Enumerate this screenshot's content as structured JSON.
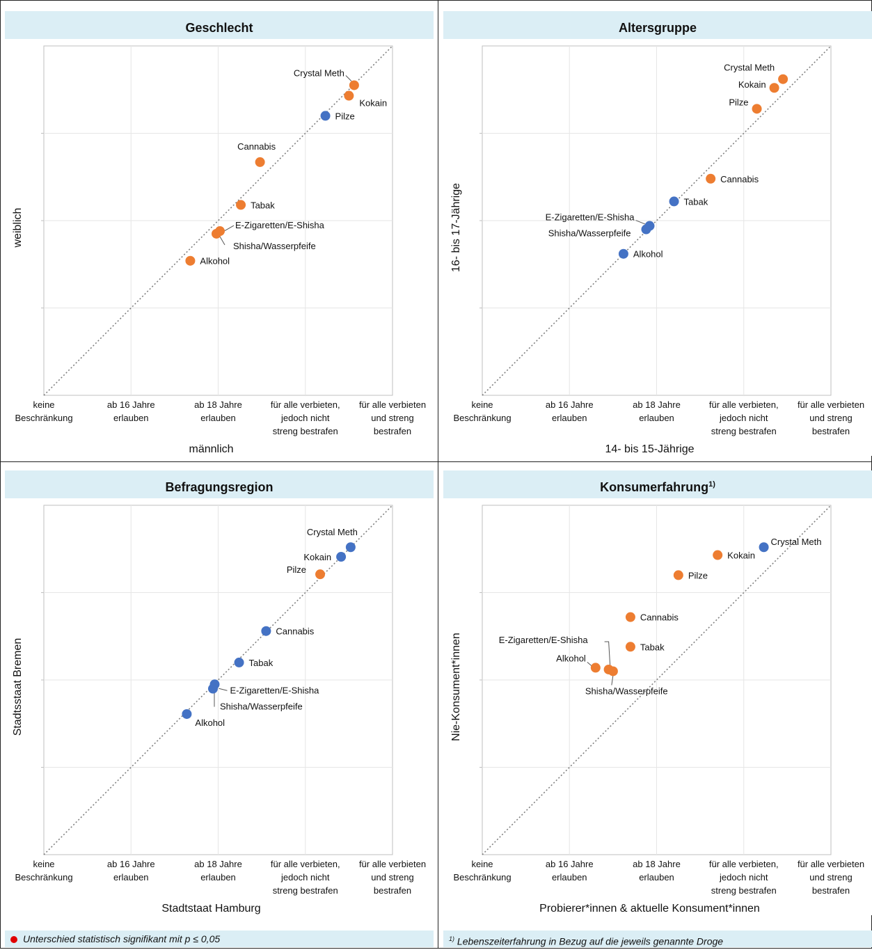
{
  "footers": {
    "left": "Unterschied statistisch signifikant mit p ≤ 0,05",
    "right_note_mark": "1)",
    "right": "Lebenszeiterfahrung in Bezug auf die jeweils genannte Droge"
  },
  "colors": {
    "significant": "#ed7d31",
    "not_significant": "#4472c4",
    "legend_dot": "#e00000"
  },
  "chart_data": [
    {
      "type": "scatter",
      "title": "Geschlecht",
      "title_sup": "",
      "xlabel": "männlich",
      "ylabel": "weiblich",
      "categories": [
        "keine Beschränkung",
        "ab 16 Jahre erlauben",
        "ab 18 Jahre erlauben",
        "für alle verbieten, jedoch nicht streng bestrafen",
        "für alle verbieten und streng bestrafen"
      ],
      "xlim": [
        1,
        5
      ],
      "ylim": [
        1,
        5
      ],
      "points": [
        {
          "name": "Crystal Meth",
          "x": 4.56,
          "y": 4.55,
          "significant": true
        },
        {
          "name": "Kokain",
          "x": 4.5,
          "y": 4.43,
          "significant": true
        },
        {
          "name": "Pilze",
          "x": 4.23,
          "y": 4.2,
          "significant": false
        },
        {
          "name": "Cannabis",
          "x": 3.48,
          "y": 3.67,
          "significant": true
        },
        {
          "name": "Tabak",
          "x": 3.26,
          "y": 3.18,
          "significant": true
        },
        {
          "name": "E-Zigaretten/E-Shisha",
          "x": 3.02,
          "y": 2.88,
          "significant": true
        },
        {
          "name": "Shisha/Wasserpfeife",
          "x": 2.98,
          "y": 2.85,
          "significant": true
        },
        {
          "name": "Alkohol",
          "x": 2.68,
          "y": 2.54,
          "significant": true
        }
      ]
    },
    {
      "type": "scatter",
      "title": "Altersgruppe",
      "title_sup": "",
      "xlabel": "14- bis 15-Jährige",
      "ylabel": "16- bis 17-Jährige",
      "categories": [
        "keine Beschränkung",
        "ab 16 Jahre erlauben",
        "ab 18 Jahre erlauben",
        "für alle verbieten, jedoch nicht streng bestrafen",
        "für alle verbieten und streng bestrafen"
      ],
      "xlim": [
        1,
        5
      ],
      "ylim": [
        1,
        5
      ],
      "points": [
        {
          "name": "Crystal Meth",
          "x": 4.45,
          "y": 4.62,
          "significant": true
        },
        {
          "name": "Kokain",
          "x": 4.35,
          "y": 4.52,
          "significant": true
        },
        {
          "name": "Pilze",
          "x": 4.15,
          "y": 4.28,
          "significant": true
        },
        {
          "name": "Cannabis",
          "x": 3.62,
          "y": 3.48,
          "significant": true
        },
        {
          "name": "Tabak",
          "x": 3.2,
          "y": 3.22,
          "significant": false
        },
        {
          "name": "E-Zigaretten/E-Shisha",
          "x": 2.92,
          "y": 2.94,
          "significant": false
        },
        {
          "name": "Shisha/Wasserpfeife",
          "x": 2.88,
          "y": 2.9,
          "significant": false
        },
        {
          "name": "Alkohol",
          "x": 2.62,
          "y": 2.62,
          "significant": false
        }
      ]
    },
    {
      "type": "scatter",
      "title": "Befragungsregion",
      "title_sup": "",
      "xlabel": "Stadtstaat Hamburg",
      "ylabel": "Stadtsstaat Bremen",
      "categories": [
        "keine Beschränkung",
        "ab 16 Jahre erlauben",
        "ab 18 Jahre erlauben",
        "für alle verbieten, jedoch nicht streng bestrafen",
        "für alle verbieten und streng bestrafen"
      ],
      "xlim": [
        1,
        5
      ],
      "ylim": [
        1,
        5
      ],
      "points": [
        {
          "name": "Crystal Meth",
          "x": 4.52,
          "y": 4.52,
          "significant": false
        },
        {
          "name": "Kokain",
          "x": 4.41,
          "y": 4.41,
          "significant": false
        },
        {
          "name": "Pilze",
          "x": 4.17,
          "y": 4.21,
          "significant": true
        },
        {
          "name": "Cannabis",
          "x": 3.55,
          "y": 3.56,
          "significant": false
        },
        {
          "name": "Tabak",
          "x": 3.24,
          "y": 3.2,
          "significant": false
        },
        {
          "name": "E-Zigaretten/E-Shisha",
          "x": 2.96,
          "y": 2.95,
          "significant": false
        },
        {
          "name": "Shisha/Wasserpfeife",
          "x": 2.94,
          "y": 2.9,
          "significant": false
        },
        {
          "name": "Alkohol",
          "x": 2.64,
          "y": 2.61,
          "significant": false
        }
      ]
    },
    {
      "type": "scatter",
      "title": "Konsumerfahrung",
      "title_sup": "1)",
      "xlabel": "Probierer*innen & aktuelle Konsument*innen",
      "ylabel": "Nie-Konsument*innen",
      "categories": [
        "keine Beschränkung",
        "ab 16 Jahre erlauben",
        "ab 18 Jahre erlauben",
        "für alle verbieten, jedoch nicht streng bestrafen",
        "für alle verbieten und streng bestrafen"
      ],
      "xlim": [
        1,
        5
      ],
      "ylim": [
        1,
        5
      ],
      "points": [
        {
          "name": "Crystal Meth",
          "x": 4.23,
          "y": 4.52,
          "significant": false
        },
        {
          "name": "Kokain",
          "x": 3.7,
          "y": 4.43,
          "significant": true
        },
        {
          "name": "Pilze",
          "x": 3.25,
          "y": 4.2,
          "significant": true
        },
        {
          "name": "Cannabis",
          "x": 2.7,
          "y": 3.72,
          "significant": true
        },
        {
          "name": "Tabak",
          "x": 2.7,
          "y": 3.38,
          "significant": true
        },
        {
          "name": "E-Zigaretten/E-Shisha",
          "x": 2.45,
          "y": 3.12,
          "significant": true
        },
        {
          "name": "Shisha/Wasserpfeife",
          "x": 2.5,
          "y": 3.1,
          "significant": true
        },
        {
          "name": "Alkohol",
          "x": 2.3,
          "y": 3.14,
          "significant": true
        }
      ]
    }
  ]
}
